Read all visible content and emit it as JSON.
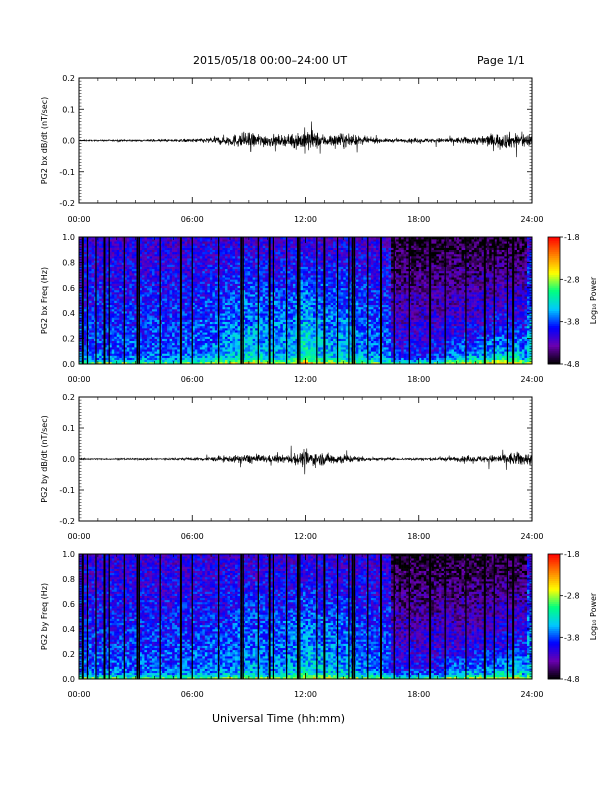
{
  "header": {
    "title": "2015/05/18  00:00–24:00 UT",
    "page": "Page 1/1"
  },
  "footer": {
    "xlabel": "Universal Time (hh:mm)"
  },
  "chart_data": [
    {
      "type": "line",
      "ylabel": "PG2 bx dB/dt (nT/sec)",
      "xlim": [
        0,
        24
      ],
      "ylim": [
        -0.2,
        0.2
      ],
      "yticks": [
        "0.2",
        "0.1",
        "0.0",
        "-0.1",
        "-0.2"
      ],
      "xticks": [
        "00:00",
        "06:00",
        "12:00",
        "18:00",
        "24:00"
      ],
      "envelope": {
        "hours": [
          0,
          1,
          2,
          3,
          4,
          5,
          6,
          7,
          8,
          9,
          10,
          11,
          12,
          13,
          14,
          15,
          16,
          17,
          18,
          19,
          20,
          21,
          22,
          23,
          24
        ],
        "amplitude": [
          0.003,
          0.003,
          0.004,
          0.004,
          0.005,
          0.006,
          0.008,
          0.015,
          0.028,
          0.04,
          0.032,
          0.025,
          0.06,
          0.03,
          0.035,
          0.02,
          0.01,
          0.008,
          0.01,
          0.012,
          0.015,
          0.02,
          0.035,
          0.04,
          0.035
        ]
      }
    },
    {
      "type": "heatmap",
      "ylabel": "PG2 bx Freq (Hz)",
      "xlim": [
        0,
        24
      ],
      "ylim": [
        0,
        1
      ],
      "yticks": [
        "1.0",
        "0.8",
        "0.6",
        "0.4",
        "0.2",
        "0.0"
      ],
      "xticks": [
        "00:00",
        "06:00",
        "12:00",
        "18:00",
        "24:00"
      ],
      "colorbar": {
        "label": "Log₁₀ Power",
        "ticks": [
          "-1.8",
          "-2.8",
          "-3.8",
          "-4.8"
        ],
        "range": [
          -4.8,
          -1.8
        ],
        "colormap": [
          "#000000",
          "#6a00b0",
          "#0000ff",
          "#00c8ff",
          "#00ff80",
          "#ffff00",
          "#ff8000",
          "#ff0000"
        ]
      },
      "gap_lines_hours": [
        0.2,
        0.45,
        0.9,
        1.35,
        1.6,
        2.4,
        3.1,
        3.2,
        4.3,
        5.4,
        6.0,
        7.4,
        8.6,
        8.7,
        9.5,
        10.1,
        10.3,
        11.0,
        11.6,
        11.7,
        12.6,
        13.0,
        13.7,
        14.3,
        14.5,
        14.6,
        15.3,
        16.0,
        16.7,
        17.5,
        18.6,
        19.4,
        20.5,
        21.5,
        22.0,
        22.7,
        23.0
      ]
    },
    {
      "type": "line",
      "ylabel": "PG2 by dB/dt (nT/sec)",
      "xlim": [
        0,
        24
      ],
      "ylim": [
        -0.2,
        0.2
      ],
      "yticks": [
        "0.2",
        "0.1",
        "0.0",
        "-0.1",
        "-0.2"
      ],
      "xticks": [
        "00:00",
        "06:00",
        "12:00",
        "18:00",
        "24:00"
      ],
      "envelope": {
        "hours": [
          0,
          1,
          2,
          3,
          4,
          5,
          6,
          7,
          8,
          9,
          10,
          11,
          12,
          13,
          14,
          15,
          16,
          17,
          18,
          19,
          20,
          21,
          22,
          23,
          24
        ],
        "amplitude": [
          0.003,
          0.003,
          0.003,
          0.004,
          0.004,
          0.005,
          0.006,
          0.01,
          0.015,
          0.025,
          0.018,
          0.02,
          0.04,
          0.03,
          0.025,
          0.012,
          0.006,
          0.005,
          0.006,
          0.008,
          0.012,
          0.015,
          0.02,
          0.035,
          0.03
        ]
      }
    },
    {
      "type": "heatmap",
      "ylabel": "PG2 by Freq (Hz)",
      "xlim": [
        0,
        24
      ],
      "ylim": [
        0,
        1
      ],
      "yticks": [
        "1.0",
        "0.8",
        "0.6",
        "0.4",
        "0.2",
        "0.0"
      ],
      "xticks": [
        "00:00",
        "06:00",
        "12:00",
        "18:00",
        "24:00"
      ],
      "colorbar": {
        "label": "Log₁₀ Power",
        "ticks": [
          "-1.8",
          "-2.8",
          "-3.8",
          "-4.8"
        ],
        "range": [
          -4.8,
          -1.8
        ],
        "colormap": [
          "#000000",
          "#6a00b0",
          "#0000ff",
          "#00c8ff",
          "#00ff80",
          "#ffff00",
          "#ff8000",
          "#ff0000"
        ]
      },
      "gap_lines_hours": [
        0.2,
        0.45,
        0.9,
        1.35,
        1.6,
        2.4,
        3.1,
        3.2,
        4.3,
        5.4,
        6.0,
        7.4,
        8.6,
        8.7,
        9.5,
        10.1,
        10.3,
        11.0,
        11.6,
        11.7,
        12.6,
        13.0,
        13.7,
        14.3,
        14.5,
        14.6,
        15.3,
        16.0,
        16.7,
        17.5,
        18.6,
        19.4,
        20.5,
        21.5,
        22.0,
        22.7,
        23.0
      ]
    }
  ]
}
